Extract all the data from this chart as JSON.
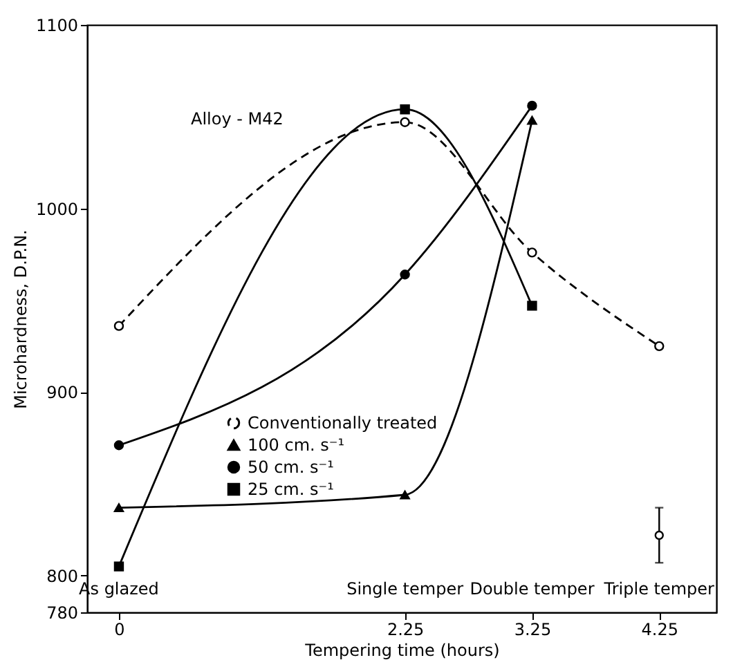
{
  "chart_data": {
    "type": "line",
    "xlabel": "Tempering time (hours)",
    "ylabel": "Microhardness, D.P.N.",
    "xlim": [
      -0.25,
      4.7
    ],
    "xticks": [
      0,
      2.25,
      3.25,
      4.25
    ],
    "ylim": [
      780,
      1100
    ],
    "yticks": [
      780,
      800,
      900,
      1000,
      1100
    ],
    "grid": false,
    "legend": "bottom left",
    "annotations": [
      "Alloy - M42",
      "As glazed",
      "Single temper",
      "Double temper",
      "Triple temper"
    ],
    "series": [
      {
        "name": "Conventionally treated",
        "color": "#000000",
        "x": [
          0,
          2.25,
          3.25,
          4.25
        ],
        "values": [
          936,
          1047,
          976,
          925
        ],
        "marker": "circle",
        "line_style": "dashed"
      },
      {
        "name": "100 cm. s⁻¹",
        "color": "#000000",
        "x": [
          0,
          2.25,
          3.25
        ],
        "values": [
          837,
          844,
          1048
        ],
        "marker": "triangle",
        "line_style": "solid"
      },
      {
        "name": "50 cm. s⁻¹",
        "color": "#000000",
        "x": [
          0,
          2.25,
          3.25
        ],
        "values": [
          871,
          964,
          1056
        ],
        "marker": "circle",
        "line_style": "solid"
      },
      {
        "name": "25 cm. s⁻¹",
        "color": "#000000",
        "x": [
          0,
          2.25,
          3.25
        ],
        "values": [
          805,
          1054,
          947
        ],
        "marker": "square",
        "line_style": "solid"
      },
      {
        "type": "scatter",
        "color": "#000000",
        "x": [
          4.25
        ],
        "values": [
          822
        ],
        "errors": [
          [
            807,
            837
          ]
        ],
        "marker": "circle"
      }
    ]
  }
}
